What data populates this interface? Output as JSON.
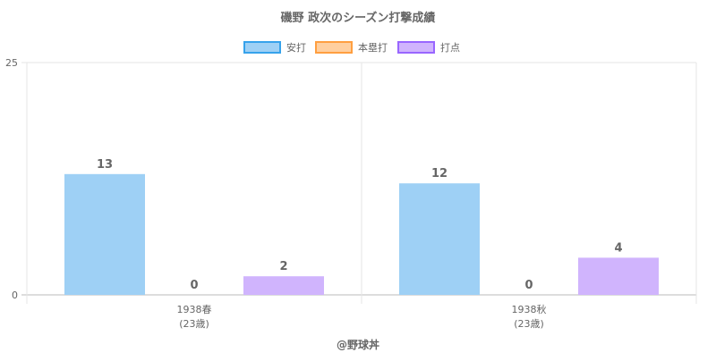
{
  "chart_data": {
    "type": "bar",
    "title": "磯野 政次のシーズン打撃成績",
    "categories": [
      "1938春",
      "1938秋"
    ],
    "category_sublabels": [
      "(23歳)",
      "(23歳)"
    ],
    "series": [
      {
        "name": "安打",
        "values": [
          13,
          12
        ],
        "color": "#9ed0f5",
        "border": "#36a2eb"
      },
      {
        "name": "本塁打",
        "values": [
          0,
          0
        ],
        "color": "#ffcf9f",
        "border": "#ff9f40"
      },
      {
        "name": "打点",
        "values": [
          2,
          4
        ],
        "color": "#d0b4fd",
        "border": "#9966ff"
      }
    ],
    "yticks": [
      "0",
      "25"
    ],
    "ylim": [
      0,
      25
    ],
    "grid": true,
    "legend": "top",
    "footer": "@野球丼"
  }
}
